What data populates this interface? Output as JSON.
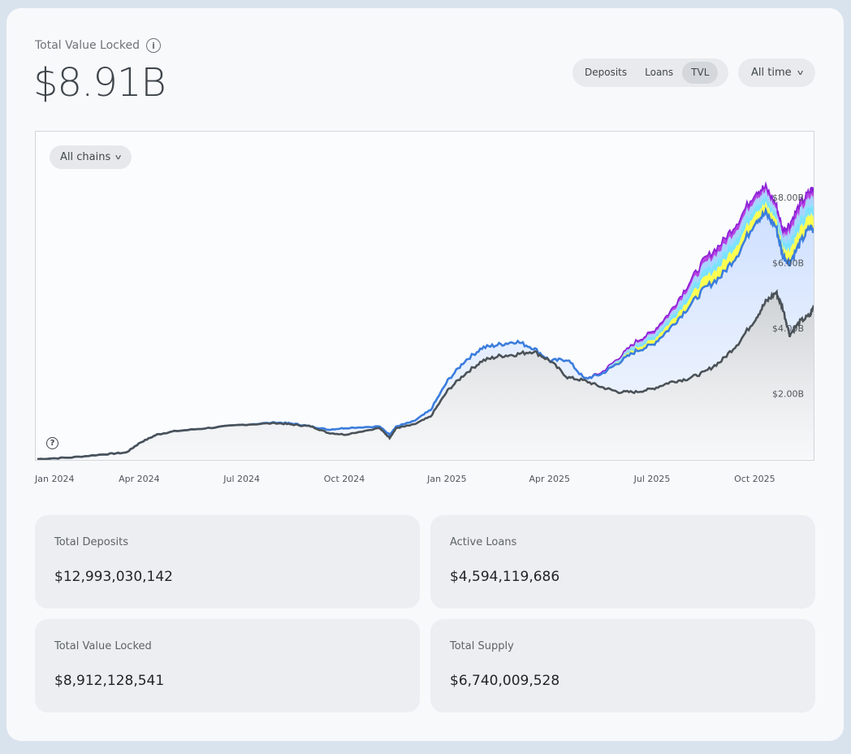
{
  "header": {
    "label": "Total Value Locked",
    "value": "$8.91B"
  },
  "controls": {
    "segments": [
      "Deposits",
      "Loans",
      "TVL"
    ],
    "active_segment": "TVL",
    "range": "All time",
    "chain_filter": "All chains"
  },
  "chart_data": {
    "type": "area",
    "x_ticks": [
      "Jan 2024",
      "Apr 2024",
      "Jul 2024",
      "Oct 2024",
      "Jan 2025",
      "Apr 2025",
      "Jul 2025",
      "Oct 2025"
    ],
    "y_ticks": [
      "$2.00B",
      "$4.00B",
      "$6.00B",
      "$8.00B"
    ],
    "y_tick_values": [
      2,
      4,
      6,
      8
    ],
    "ylim": [
      0,
      10
    ],
    "x_month_range": [
      0,
      22.7
    ],
    "grey_series": [
      [
        0,
        0.0
      ],
      [
        1,
        0.05
      ],
      [
        2,
        0.15
      ],
      [
        2.6,
        0.2
      ],
      [
        3,
        0.5
      ],
      [
        3.5,
        0.75
      ],
      [
        4,
        0.85
      ],
      [
        5,
        0.95
      ],
      [
        6,
        1.05
      ],
      [
        7,
        1.1
      ],
      [
        7.5,
        1.05
      ],
      [
        8,
        1.0
      ],
      [
        8.5,
        0.8
      ],
      [
        9,
        0.75
      ],
      [
        10,
        0.95
      ],
      [
        10.3,
        0.65
      ],
      [
        10.5,
        0.95
      ],
      [
        11,
        1.05
      ],
      [
        11.5,
        1.3
      ],
      [
        12,
        2.1
      ],
      [
        12.5,
        2.6
      ],
      [
        13,
        3.0
      ],
      [
        13.5,
        3.15
      ],
      [
        14,
        3.2
      ],
      [
        14.5,
        3.3
      ],
      [
        15,
        3.0
      ],
      [
        15.5,
        2.5
      ],
      [
        16,
        2.4
      ],
      [
        16.5,
        2.2
      ],
      [
        17,
        2.05
      ],
      [
        17.5,
        2.05
      ],
      [
        18,
        2.15
      ],
      [
        18.5,
        2.35
      ],
      [
        19,
        2.45
      ],
      [
        19.5,
        2.65
      ],
      [
        20,
        3.0
      ],
      [
        20.5,
        3.55
      ],
      [
        21,
        4.3
      ],
      [
        21.3,
        4.8
      ],
      [
        21.6,
        5.1
      ],
      [
        21.8,
        4.6
      ],
      [
        22,
        3.8
      ],
      [
        22.3,
        4.2
      ],
      [
        22.6,
        4.4
      ],
      [
        22.7,
        4.7
      ]
    ],
    "blue_series": [
      [
        0,
        0.0
      ],
      [
        1,
        0.05
      ],
      [
        2,
        0.15
      ],
      [
        2.6,
        0.2
      ],
      [
        3,
        0.5
      ],
      [
        3.5,
        0.75
      ],
      [
        4,
        0.85
      ],
      [
        5,
        0.95
      ],
      [
        6,
        1.05
      ],
      [
        7,
        1.12
      ],
      [
        7.5,
        1.08
      ],
      [
        8,
        1.0
      ],
      [
        8.5,
        0.9
      ],
      [
        9,
        0.95
      ],
      [
        10,
        1.0
      ],
      [
        10.3,
        0.75
      ],
      [
        10.5,
        1.0
      ],
      [
        11,
        1.15
      ],
      [
        11.5,
        1.5
      ],
      [
        12,
        2.4
      ],
      [
        12.5,
        3.0
      ],
      [
        13,
        3.4
      ],
      [
        13.5,
        3.5
      ],
      [
        14,
        3.6
      ],
      [
        14.5,
        3.4
      ],
      [
        15,
        3.0
      ],
      [
        15.5,
        3.05
      ],
      [
        16,
        2.45
      ],
      [
        16.5,
        2.6
      ],
      [
        17,
        2.95
      ],
      [
        17.5,
        3.3
      ],
      [
        18,
        3.5
      ],
      [
        18.5,
        4.0
      ],
      [
        19,
        4.6
      ],
      [
        19.5,
        5.2
      ],
      [
        20,
        5.6
      ],
      [
        20.5,
        6.3
      ],
      [
        21,
        7.3
      ],
      [
        21.3,
        7.5
      ],
      [
        21.6,
        7.1
      ],
      [
        21.8,
        6.2
      ],
      [
        22,
        6.0
      ],
      [
        22.3,
        6.6
      ],
      [
        22.6,
        7.1
      ],
      [
        22.7,
        7.0
      ]
    ],
    "top_series": [
      [
        0,
        0.0
      ],
      [
        1,
        0.05
      ],
      [
        2,
        0.15
      ],
      [
        2.6,
        0.2
      ],
      [
        3,
        0.5
      ],
      [
        3.5,
        0.75
      ],
      [
        4,
        0.85
      ],
      [
        5,
        0.95
      ],
      [
        6,
        1.05
      ],
      [
        7,
        1.12
      ],
      [
        7.5,
        1.08
      ],
      [
        8,
        1.0
      ],
      [
        8.5,
        0.9
      ],
      [
        9,
        0.95
      ],
      [
        10,
        1.0
      ],
      [
        10.3,
        0.75
      ],
      [
        10.5,
        1.0
      ],
      [
        11,
        1.15
      ],
      [
        11.5,
        1.5
      ],
      [
        12,
        2.4
      ],
      [
        12.5,
        3.0
      ],
      [
        13,
        3.4
      ],
      [
        13.5,
        3.5
      ],
      [
        14,
        3.6
      ],
      [
        14.5,
        3.4
      ],
      [
        15,
        3.0
      ],
      [
        15.5,
        3.05
      ],
      [
        16,
        2.45
      ],
      [
        16.5,
        2.65
      ],
      [
        17,
        3.1
      ],
      [
        17.5,
        3.6
      ],
      [
        18,
        3.9
      ],
      [
        18.5,
        4.5
      ],
      [
        19,
        5.3
      ],
      [
        19.5,
        6.1
      ],
      [
        20,
        6.6
      ],
      [
        20.5,
        7.3
      ],
      [
        21,
        8.2
      ],
      [
        21.3,
        8.3
      ],
      [
        21.6,
        7.8
      ],
      [
        21.8,
        7.0
      ],
      [
        22,
        7.2
      ],
      [
        22.3,
        7.8
      ],
      [
        22.6,
        8.2
      ],
      [
        22.7,
        8.3
      ]
    ],
    "band_fractions": [
      0.35,
      0.6,
      0.82,
      1.0
    ],
    "band_colors": [
      "#ffff33",
      "#66ddff",
      "#99ccff",
      "#aa22dd"
    ],
    "colors": {
      "grey": "#4a5258",
      "blue": "#3b7ddd",
      "top": "#8a1fd6"
    },
    "grid": false
  },
  "stats": [
    {
      "label": "Total Deposits",
      "value": "$12,993,030,142"
    },
    {
      "label": "Active Loans",
      "value": "$4,594,119,686"
    },
    {
      "label": "Total Value Locked",
      "value": "$8,912,128,541"
    },
    {
      "label": "Total Supply",
      "value": "$6,740,009,528"
    }
  ]
}
